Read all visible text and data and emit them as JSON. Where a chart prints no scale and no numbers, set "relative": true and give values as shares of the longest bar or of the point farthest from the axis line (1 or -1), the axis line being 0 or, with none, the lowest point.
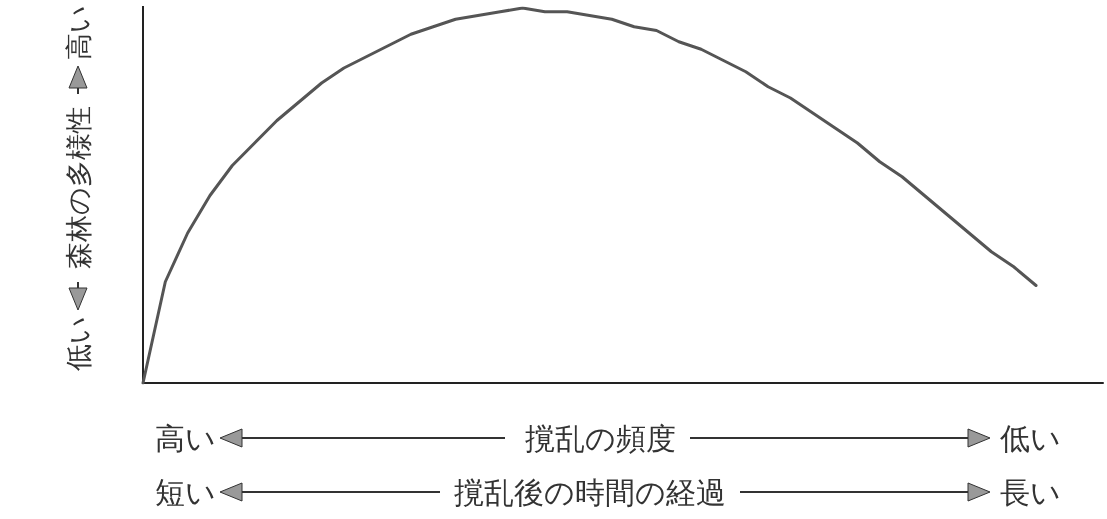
{
  "chart_data": {
    "type": "line",
    "relative": true,
    "ylabel": "森林の多様性",
    "xlabel": "撹乱の頻度",
    "categories": [
      null,
      null,
      null,
      null,
      null,
      null,
      null,
      null,
      null,
      null,
      null,
      null,
      null,
      null,
      null,
      null,
      null,
      null,
      null,
      null,
      null,
      null,
      null,
      null,
      null,
      null,
      null,
      null,
      null,
      null,
      null,
      null,
      null,
      null,
      null,
      null,
      null,
      null,
      null,
      null,
      null,
      null,
      null,
      null
    ],
    "series": [
      {
        "color": "#555555",
        "values": [
          0,
          0.27,
          0.4,
          0.5,
          0.58,
          0.64,
          0.7,
          0.75,
          0.8,
          0.84,
          0.87,
          0.9,
          0.93,
          0.95,
          0.97,
          0.98,
          0.99,
          1,
          0.99,
          0.99,
          0.98,
          0.97,
          0.95,
          0.94,
          0.91,
          0.89,
          0.86,
          0.83,
          0.79,
          0.76,
          0.72,
          0.68,
          0.64,
          0.59,
          0.55,
          0.5,
          0.45,
          0.4,
          0.35,
          0.31,
          0.26,
          null,
          null,
          null
        ]
      }
    ],
    "annotations": [
      "低い",
      "高い",
      "高い",
      "低い",
      "撹乱後の時間の経過",
      "短い",
      "長い"
    ],
    "marker": "none",
    "line_style": "solid"
  }
}
